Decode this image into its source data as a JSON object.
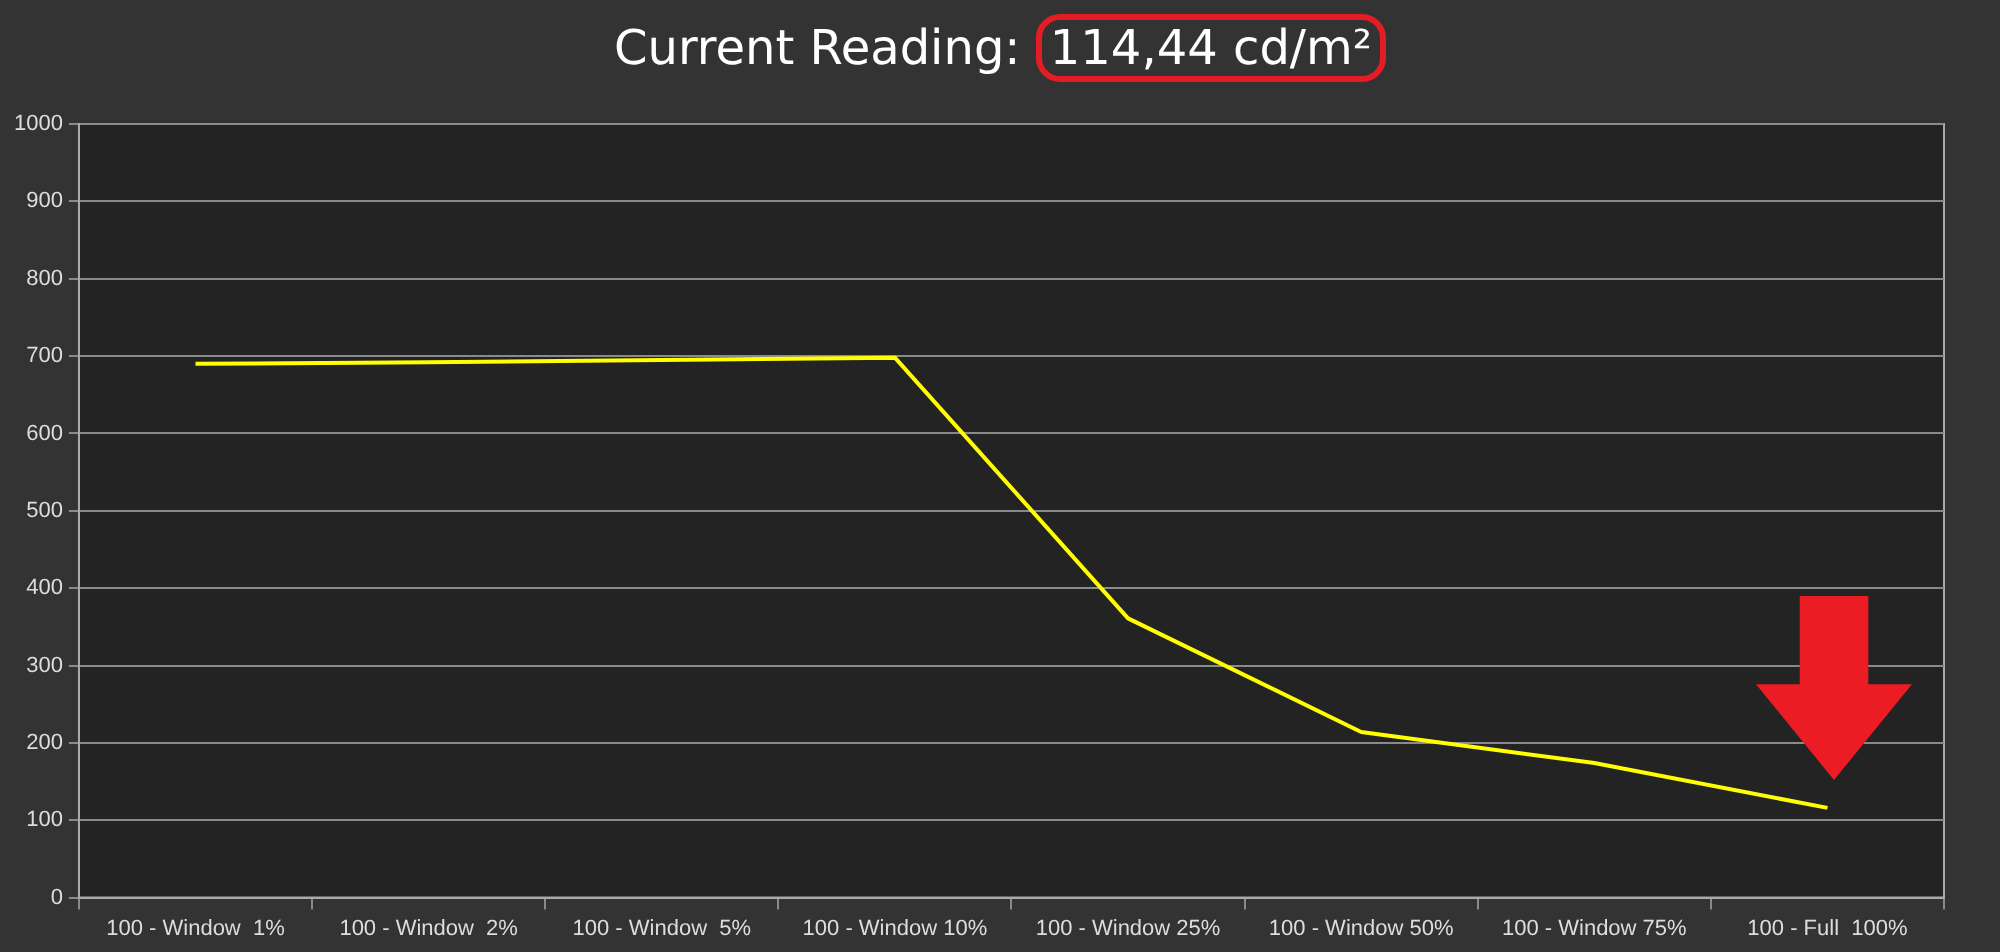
{
  "chart_data": {
    "type": "line",
    "title": "Current Reading: 114,44 cd/m²",
    "categories": [
      "100 - Window  1%",
      "100 - Window  2%",
      "100 - Window  5%",
      "100 - Window 10%",
      "100 - Window 25%",
      "100 - Window 50%",
      "100 - Window 75%",
      "100 - Full  100%"
    ],
    "series": [
      {
        "color": "#ffff00",
        "values": [
          690,
          692,
          695,
          698,
          361,
          214,
          174,
          116
        ]
      }
    ],
    "ylim": [
      0,
      1000
    ],
    "yticks": [
      0,
      100,
      200,
      300,
      400,
      500,
      600,
      700,
      800,
      900,
      1000
    ],
    "grid": "y",
    "legend": false,
    "marker": "none",
    "line_style": "solid"
  }
}
